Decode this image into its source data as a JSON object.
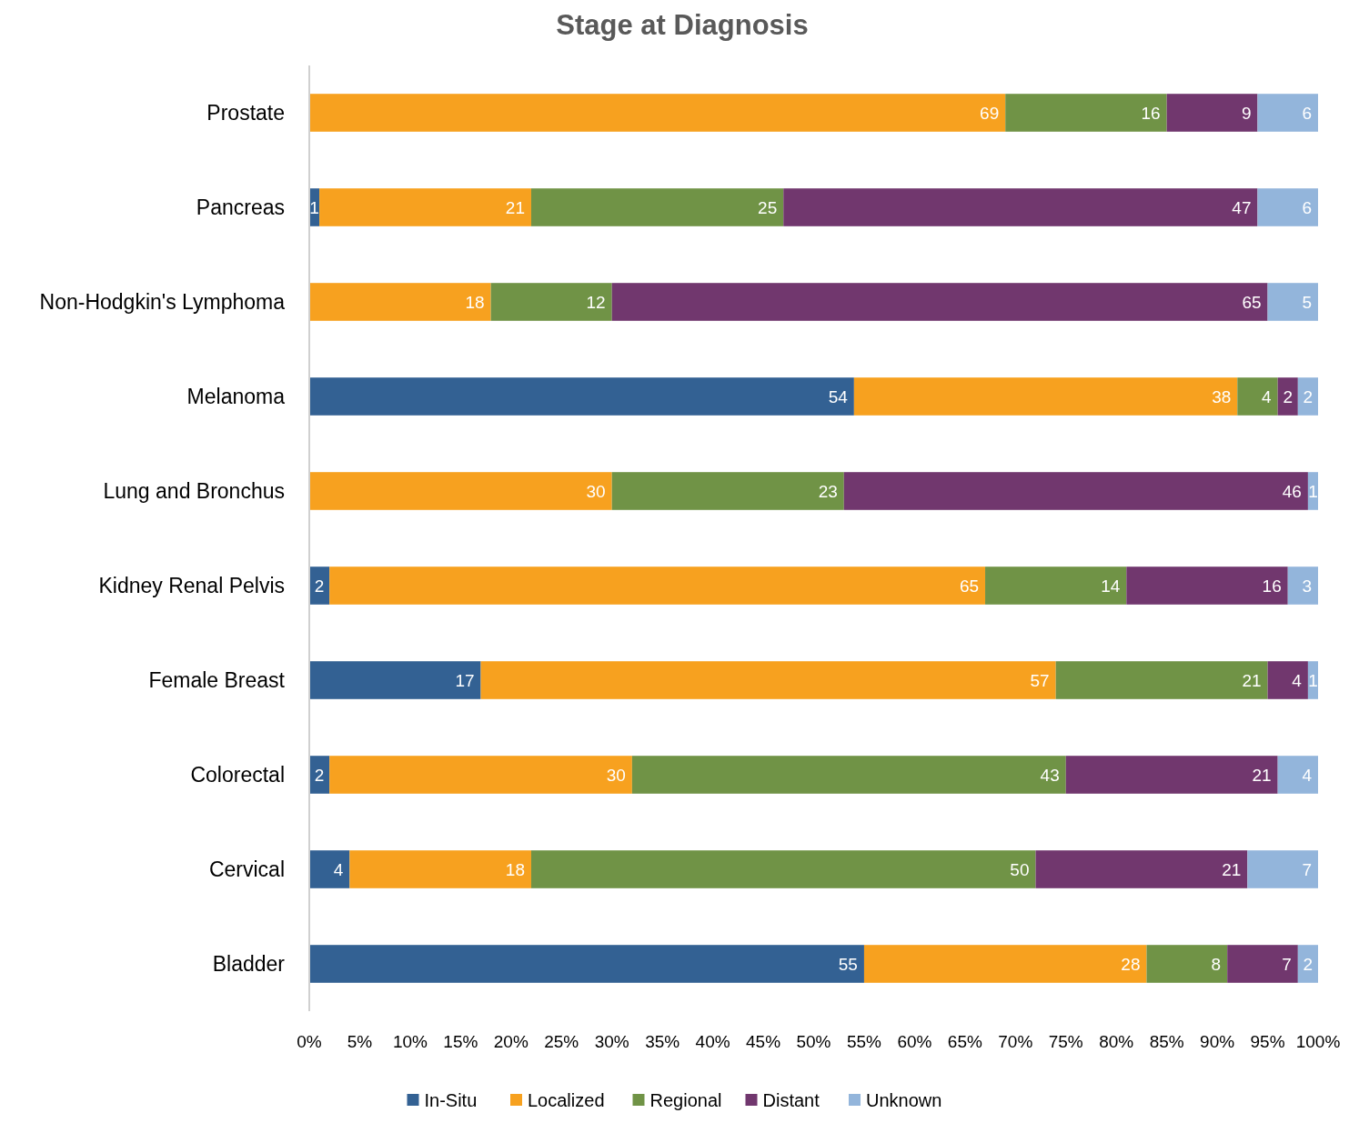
{
  "chart_data": {
    "type": "bar",
    "orientation": "horizontal",
    "stacked": true,
    "title": "Stage at Diagnosis",
    "categories": [
      "Prostate",
      "Pancreas",
      "Non-Hodgkin's Lymphoma",
      "Melanoma",
      "Lung and Bronchus",
      "Kidney Renal Pelvis",
      "Female Breast",
      "Colorectal",
      "Cervical",
      "Bladder"
    ],
    "series": [
      {
        "name": "In-Situ",
        "color": "#336193",
        "values": [
          null,
          1,
          null,
          54,
          null,
          2,
          17,
          2,
          4,
          55
        ]
      },
      {
        "name": "Localized",
        "color": "#f7a11f",
        "values": [
          69,
          21,
          18,
          38,
          30,
          65,
          57,
          30,
          18,
          28
        ]
      },
      {
        "name": "Regional",
        "color": "#709346",
        "values": [
          16,
          25,
          12,
          4,
          23,
          14,
          21,
          43,
          50,
          8
        ]
      },
      {
        "name": "Distant",
        "color": "#71376e",
        "values": [
          9,
          47,
          65,
          2,
          46,
          16,
          4,
          21,
          21,
          7
        ]
      },
      {
        "name": "Unknown",
        "color": "#93b5db",
        "values": [
          6,
          6,
          5,
          2,
          1,
          3,
          1,
          4,
          7,
          2
        ]
      }
    ],
    "xlim": [
      0,
      100
    ],
    "xticks": [
      {
        "value": 0,
        "label": "0%"
      },
      {
        "value": 5,
        "label": "5%"
      },
      {
        "value": 10,
        "label": "10%"
      },
      {
        "value": 15,
        "label": "15%"
      },
      {
        "value": 20,
        "label": "20%"
      },
      {
        "value": 25,
        "label": "25%"
      },
      {
        "value": 30,
        "label": "30%"
      },
      {
        "value": 35,
        "label": "35%"
      },
      {
        "value": 40,
        "label": "40%"
      },
      {
        "value": 45,
        "label": "45%"
      },
      {
        "value": 50,
        "label": "50%"
      },
      {
        "value": 55,
        "label": "55%"
      },
      {
        "value": 60,
        "label": "60%"
      },
      {
        "value": 65,
        "label": "65%"
      },
      {
        "value": 70,
        "label": "70%"
      },
      {
        "value": 75,
        "label": "75%"
      },
      {
        "value": 80,
        "label": "80%"
      },
      {
        "value": 85,
        "label": "85%"
      },
      {
        "value": 90,
        "label": "90%"
      },
      {
        "value": 95,
        "label": "95%"
      },
      {
        "value": 100,
        "label": "100%"
      }
    ],
    "data_labels": true,
    "legend": "bottom",
    "grid": false
  }
}
